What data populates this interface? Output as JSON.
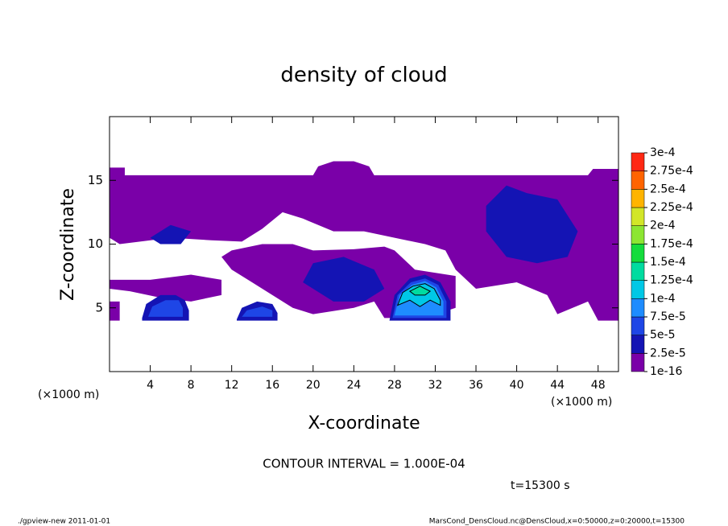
{
  "chart_data": {
    "type": "contour",
    "title": "density of cloud",
    "x_label": "X-coordinate",
    "y_label": "Z-coordinate",
    "x_unit": "(×1000 m)",
    "y_unit": "(×1000 m)",
    "xlim": [
      0,
      50
    ],
    "ylim": [
      0,
      20
    ],
    "xticks": [
      4,
      8,
      12,
      16,
      20,
      24,
      28,
      32,
      36,
      40,
      44,
      48
    ],
    "yticks": [
      5,
      10,
      15
    ],
    "contour_interval": "CONTOUR INTERVAL = 1.000E-04",
    "time": "t=15300 s",
    "contour_line_level": 0.0001,
    "colorbar": {
      "ticks": [
        {
          "value": 1e-16,
          "label": "1e-16"
        },
        {
          "value": 2.5e-05,
          "label": "2.5e-5"
        },
        {
          "value": 5e-05,
          "label": "5e-5"
        },
        {
          "value": 7.5e-05,
          "label": "7.5e-5"
        },
        {
          "value": 0.0001,
          "label": "1e-4"
        },
        {
          "value": 0.000125,
          "label": "1.25e-4"
        },
        {
          "value": 0.00015,
          "label": "1.5e-4"
        },
        {
          "value": 0.000175,
          "label": "1.75e-4"
        },
        {
          "value": 0.0002,
          "label": "2e-4"
        },
        {
          "value": 0.000225,
          "label": "2.25e-4"
        },
        {
          "value": 0.00025,
          "label": "2.5e-4"
        },
        {
          "value": 0.000275,
          "label": "2.75e-4"
        },
        {
          "value": 0.0003,
          "label": "3e-4"
        }
      ],
      "colors": [
        "#7a00a8",
        "#1414b4",
        "#1e46e6",
        "#1e8cff",
        "#00c8e6",
        "#00dca0",
        "#14dc3c",
        "#8ce632",
        "#d2e628",
        "#ffb400",
        "#ff6400",
        "#ff2814",
        "#ff8c8c"
      ]
    },
    "regions": [
      {
        "level": 1e-16,
        "x": [
          0,
          1.5,
          1.5,
          20,
          20.5,
          22,
          24,
          25.5,
          26,
          47,
          47.5,
          50,
          50,
          48,
          47,
          44,
          43,
          40,
          36,
          34,
          33,
          31,
          28,
          25,
          22,
          19,
          17,
          15,
          13,
          10,
          6,
          3,
          1,
          0
        ],
        "z": [
          16,
          16,
          15.4,
          15.4,
          16.1,
          16.5,
          16.5,
          16.1,
          15.4,
          15.4,
          15.9,
          15.9,
          4,
          4,
          5.5,
          4.5,
          6,
          7,
          6.5,
          8,
          9.5,
          10,
          10.5,
          11,
          11,
          12,
          12.5,
          11.2,
          10.2,
          10.3,
          10.5,
          10.2,
          10,
          10.5
        ]
      },
      {
        "level": 1e-16,
        "x": [
          12,
          15,
          18,
          20,
          24,
          27,
          28,
          30,
          34,
          34,
          31,
          27,
          26,
          24,
          20,
          18,
          16,
          14,
          12,
          11
        ],
        "z": [
          9.5,
          10,
          10,
          9.5,
          9.6,
          9.8,
          9.5,
          8,
          7.5,
          5,
          4.2,
          4.2,
          5.5,
          5,
          4.5,
          5,
          6,
          7,
          8,
          9
        ]
      },
      {
        "level": 1e-16,
        "x": [
          0,
          4,
          8,
          11,
          11,
          8,
          5,
          2,
          0
        ],
        "z": [
          7.2,
          7.2,
          7.6,
          7.2,
          6,
          5.5,
          5.8,
          6.3,
          6.5
        ]
      },
      {
        "level": 1e-16,
        "x": [
          0,
          1,
          1,
          0
        ],
        "z": [
          4,
          4,
          5.5,
          5.5
        ]
      },
      {
        "level": 2.5e-05,
        "x": [
          3.2,
          3.6,
          5,
          6.5,
          7.4,
          7.8,
          7.8,
          3.2
        ],
        "z": [
          4.2,
          5.3,
          6,
          6,
          5.6,
          4.8,
          4,
          4
        ]
      },
      {
        "level": 5e-05,
        "x": [
          3.8,
          4.2,
          5.5,
          6.8,
          7.2,
          7.2,
          3.8
        ],
        "z": [
          4.3,
          5.1,
          5.6,
          5.6,
          5,
          4.3,
          4.3
        ]
      },
      {
        "level": 2.5e-05,
        "x": [
          12.5,
          13,
          14.5,
          16,
          16.5,
          16.5,
          12.5
        ],
        "z": [
          4.1,
          5,
          5.5,
          5.3,
          4.6,
          4,
          4
        ]
      },
      {
        "level": 5e-05,
        "x": [
          13,
          13.5,
          15,
          16,
          16,
          13
        ],
        "z": [
          4.3,
          4.8,
          5.1,
          4.8,
          4.3,
          4.3
        ]
      },
      {
        "level": 2.5e-05,
        "x": [
          20,
          23,
          26,
          27,
          25,
          22,
          19
        ],
        "z": [
          8.5,
          9,
          8,
          6.5,
          5.5,
          5.5,
          7
        ]
      },
      {
        "level": 2.5e-05,
        "x": [
          37,
          39,
          41,
          44,
          46,
          45,
          42,
          39,
          37
        ],
        "z": [
          13,
          14.6,
          14,
          13.5,
          11,
          9,
          8.5,
          9,
          11
        ]
      },
      {
        "level": 2.5e-05,
        "x": [
          4,
          6,
          8,
          7,
          5
        ],
        "z": [
          10.5,
          11.5,
          11,
          10,
          10
        ]
      },
      {
        "level": 2.5e-05,
        "x": [
          27.5,
          28,
          29.5,
          31,
          32.5,
          33.5,
          33.5,
          27.5
        ],
        "z": [
          4,
          6,
          7.3,
          7.6,
          7,
          5.5,
          4,
          4
        ]
      },
      {
        "level": 5e-05,
        "x": [
          27.8,
          28.3,
          29.6,
          31,
          32.3,
          33.1,
          33.1,
          27.8
        ],
        "z": [
          4.2,
          6,
          7,
          7.3,
          6.8,
          5.5,
          4.2,
          4.2
        ]
      },
      {
        "level": 7.5e-05,
        "x": [
          28,
          28.5,
          29.7,
          31,
          32.1,
          32.8,
          32.8,
          28
        ],
        "z": [
          4.4,
          6,
          6.8,
          7.1,
          6.6,
          5.5,
          4.4,
          4.4
        ]
      },
      {
        "level": 0.0001,
        "x": [
          28.3,
          28.8,
          29.8,
          31,
          31.9,
          32.5,
          32.5,
          31.5,
          30.5,
          29.5,
          28.3
        ],
        "z": [
          5.2,
          6.2,
          6.7,
          6.9,
          6.5,
          5.6,
          5.2,
          5.6,
          5.1,
          5.6,
          5.2
        ]
      },
      {
        "level": 0.000125,
        "x": [
          29.5,
          30.5,
          31.5,
          31,
          30
        ],
        "z": [
          6.3,
          6.7,
          6.3,
          6.0,
          6.0
        ]
      }
    ],
    "footer_left": "./gpview-new  2011-01-01",
    "footer_right": "MarsCond_DensCloud.nc@DensCloud,x=0:50000,z=0:20000,t=15300"
  }
}
